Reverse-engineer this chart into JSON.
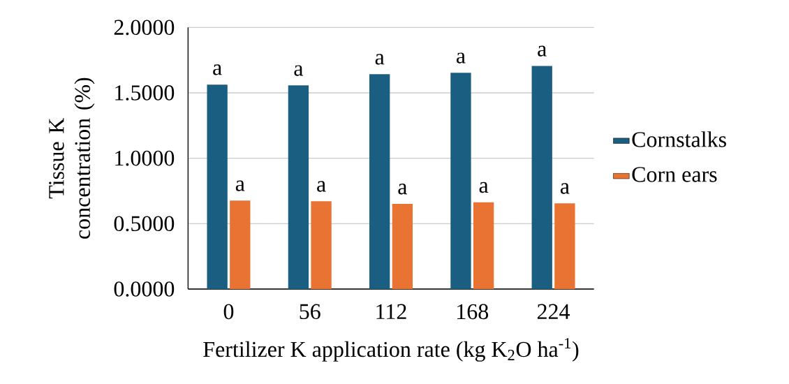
{
  "chart_data": {
    "type": "bar",
    "categories": [
      "0",
      "56",
      "112",
      "168",
      "224"
    ],
    "series": [
      {
        "name": "Cornstalks",
        "color": "#1a5e82",
        "values": [
          1.563,
          1.557,
          1.643,
          1.653,
          1.706
        ]
      },
      {
        "name": "Corn ears",
        "color": "#e87332",
        "values": [
          0.676,
          0.671,
          0.651,
          0.663,
          0.655
        ]
      }
    ],
    "xlabel": "Fertilizer K application rate (kg K$_{2}$O ha$^{-1}$)",
    "ylabel": "Tissue K concentration (%)",
    "ylim": [
      0,
      2
    ],
    "yticks": [
      {
        "value": 0,
        "label": "0.0000"
      },
      {
        "value": 0.5,
        "label": "0.5000"
      },
      {
        "value": 1,
        "label": "1.0000"
      },
      {
        "value": 1.5,
        "label": "1.5000"
      },
      {
        "value": 2,
        "label": "2.0000"
      }
    ],
    "grid": "y",
    "legend": "right",
    "annotations": [
      {
        "text": "a",
        "x": "0",
        "y": 1.563
      },
      {
        "text": "a",
        "x": "56",
        "y": 1.557
      },
      {
        "text": "a",
        "x": "112",
        "y": 1.643
      },
      {
        "text": "a",
        "x": "168",
        "y": 1.653
      },
      {
        "text": "a",
        "x": "224",
        "y": 1.706
      },
      {
        "text": "a",
        "x": "0",
        "y": 0.676
      },
      {
        "text": "a",
        "x": "56",
        "y": 0.671
      },
      {
        "text": "a",
        "x": "112",
        "y": 0.651
      },
      {
        "text": "a",
        "x": "168",
        "y": 0.663
      },
      {
        "text": "a",
        "x": "224",
        "y": 0.655
      }
    ]
  }
}
